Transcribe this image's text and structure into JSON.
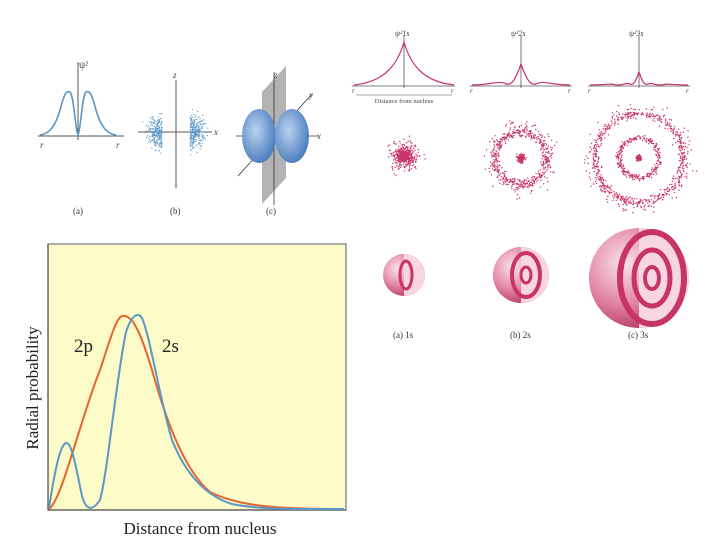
{
  "colors": {
    "blue": "#5b97c8",
    "orange": "#e8642e",
    "pink": "#c8336a",
    "plot_bg": "#fdfbc8",
    "axis": "#555555"
  },
  "p_orbital": {
    "a_ylabel": "ψ²",
    "a_left": "r",
    "a_right": "r",
    "b_top": "z",
    "b_right": "x",
    "c_top": "z",
    "c_y": "y",
    "c_right": "x",
    "caption_a": "(a)",
    "caption_b": "(b)",
    "caption_c": "(c)"
  },
  "s_orbitals": {
    "label_1s": "ψ²1s",
    "label_2s": "ψ²2s",
    "label_3s": "ψ²3s",
    "axis_r": "r",
    "distance_label": "Distance from nucleus",
    "caption_1s": "(a) 1s",
    "caption_2s": "(b) 2s",
    "caption_3s": "(c) 3s"
  },
  "radial": {
    "ylabel": "Radial probability",
    "xlabel": "Distance from nucleus",
    "label_2p": "2p",
    "label_2s": "2s"
  }
}
